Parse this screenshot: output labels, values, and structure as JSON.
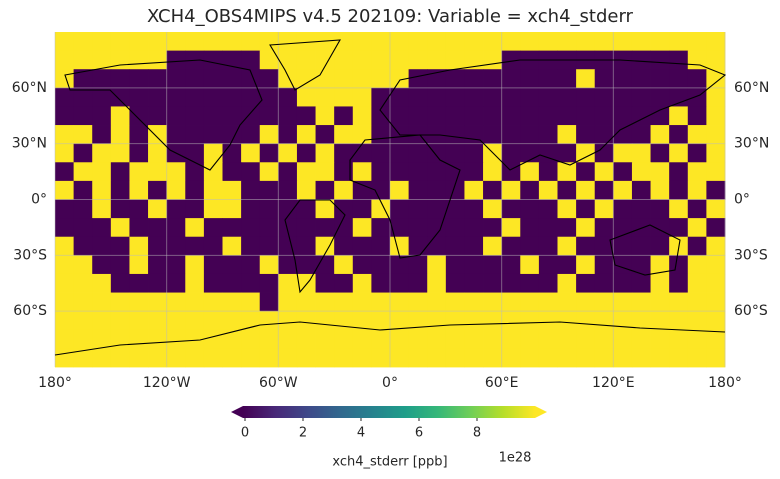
{
  "title": "XCH4_OBS4MIPS v4.5 202109: Variable = xch4_stderr",
  "map": {
    "lonlim": [
      -180,
      180
    ],
    "latlim": [
      -90,
      90
    ],
    "grid": true,
    "lonticks": [
      {
        "value": -180,
        "label": "180°"
      },
      {
        "value": -120,
        "label": "120°W"
      },
      {
        "value": -60,
        "label": "60°W"
      },
      {
        "value": 0,
        "label": "0°"
      },
      {
        "value": 60,
        "label": "60°E"
      },
      {
        "value": 120,
        "label": "120°E"
      },
      {
        "value": 180,
        "label": "180°"
      }
    ],
    "latticks": [
      {
        "value": 60,
        "label": "60°N"
      },
      {
        "value": 30,
        "label": "30°N"
      },
      {
        "value": 0,
        "label": "0°"
      },
      {
        "value": -30,
        "label": "30°S"
      },
      {
        "value": -60,
        "label": "60°S"
      }
    ],
    "cells": [
      [
        10,
        10,
        10,
        10,
        10,
        10,
        10,
        10,
        10,
        10,
        10,
        10,
        10,
        10,
        10,
        10,
        10,
        10,
        10,
        10,
        10,
        10,
        10,
        10,
        10,
        10,
        10,
        10,
        10,
        10,
        10,
        10,
        10,
        10,
        10,
        10
      ],
      [
        10,
        10,
        10,
        10,
        10,
        10,
        0,
        0,
        0,
        0,
        0,
        10,
        10,
        10,
        10,
        10,
        10,
        10,
        10,
        10,
        10,
        10,
        10,
        10,
        0,
        0,
        0,
        0,
        0,
        0,
        0,
        0,
        0,
        0,
        10,
        10
      ],
      [
        10,
        0,
        0,
        0,
        0,
        0,
        0,
        0,
        0,
        0,
        0,
        0,
        10,
        10,
        10,
        10,
        10,
        10,
        10,
        0,
        0,
        0,
        0,
        0,
        0,
        0,
        0,
        0,
        10,
        0,
        0,
        0,
        0,
        0,
        0,
        10
      ],
      [
        0,
        0,
        0,
        0,
        0,
        0,
        0,
        0,
        0,
        0,
        0,
        0,
        0,
        10,
        10,
        10,
        10,
        0,
        0,
        0,
        0,
        0,
        0,
        0,
        0,
        0,
        0,
        0,
        0,
        0,
        0,
        0,
        0,
        0,
        0,
        10
      ],
      [
        0,
        0,
        0,
        10,
        0,
        0,
        0,
        0,
        0,
        0,
        0,
        0,
        0,
        0,
        10,
        0,
        10,
        0,
        0,
        0,
        0,
        0,
        0,
        0,
        0,
        0,
        0,
        0,
        0,
        0,
        0,
        0,
        0,
        10,
        0,
        10
      ],
      [
        10,
        10,
        0,
        10,
        0,
        10,
        0,
        0,
        0,
        0,
        0,
        10,
        0,
        10,
        0,
        10,
        10,
        0,
        0,
        0,
        0,
        0,
        0,
        0,
        0,
        0,
        0,
        10,
        0,
        0,
        0,
        0,
        10,
        0,
        10,
        10
      ],
      [
        10,
        0,
        10,
        10,
        0,
        10,
        0,
        0,
        10,
        0,
        10,
        0,
        10,
        0,
        10,
        0,
        0,
        0,
        0,
        0,
        0,
        0,
        0,
        10,
        0,
        0,
        0,
        0,
        10,
        0,
        10,
        10,
        0,
        10,
        0,
        10
      ],
      [
        0,
        10,
        10,
        0,
        10,
        10,
        10,
        0,
        10,
        0,
        0,
        10,
        0,
        10,
        10,
        0,
        10,
        0,
        0,
        0,
        0,
        0,
        0,
        10,
        0,
        10,
        0,
        10,
        0,
        10,
        0,
        10,
        10,
        0,
        10,
        10
      ],
      [
        10,
        0,
        10,
        0,
        10,
        0,
        10,
        0,
        10,
        10,
        0,
        0,
        0,
        10,
        0,
        10,
        0,
        0,
        10,
        0,
        0,
        0,
        10,
        0,
        10,
        0,
        10,
        0,
        10,
        0,
        10,
        0,
        10,
        0,
        10,
        0
      ],
      [
        0,
        0,
        10,
        0,
        0,
        10,
        0,
        0,
        10,
        10,
        0,
        0,
        0,
        0,
        10,
        0,
        0,
        10,
        0,
        0,
        0,
        0,
        0,
        10,
        0,
        0,
        0,
        10,
        0,
        10,
        0,
        0,
        0,
        10,
        0,
        10
      ],
      [
        0,
        0,
        0,
        10,
        0,
        0,
        0,
        10,
        0,
        0,
        0,
        0,
        0,
        0,
        0,
        0,
        10,
        0,
        0,
        0,
        0,
        0,
        0,
        0,
        10,
        0,
        0,
        0,
        10,
        0,
        0,
        0,
        0,
        0,
        10,
        0
      ],
      [
        10,
        0,
        0,
        0,
        10,
        0,
        0,
        0,
        0,
        10,
        0,
        0,
        0,
        0,
        10,
        0,
        0,
        0,
        10,
        0,
        0,
        0,
        0,
        10,
        0,
        0,
        0,
        10,
        0,
        0,
        0,
        0,
        0,
        10,
        0,
        10
      ],
      [
        10,
        10,
        0,
        0,
        10,
        0,
        0,
        10,
        0,
        0,
        0,
        10,
        0,
        0,
        0,
        10,
        0,
        0,
        0,
        0,
        10,
        0,
        0,
        0,
        0,
        10,
        0,
        0,
        10,
        0,
        0,
        0,
        10,
        0,
        10,
        10
      ],
      [
        10,
        10,
        10,
        0,
        0,
        0,
        0,
        10,
        0,
        0,
        0,
        0,
        10,
        10,
        0,
        0,
        10,
        0,
        0,
        0,
        10,
        0,
        0,
        0,
        0,
        0,
        0,
        10,
        0,
        0,
        0,
        0,
        10,
        0,
        10,
        10
      ],
      [
        10,
        10,
        10,
        10,
        10,
        10,
        10,
        10,
        10,
        10,
        10,
        0,
        10,
        10,
        10,
        10,
        10,
        10,
        10,
        10,
        10,
        10,
        10,
        10,
        10,
        10,
        10,
        10,
        10,
        10,
        10,
        10,
        10,
        10,
        10,
        10
      ],
      [
        10,
        10,
        10,
        10,
        10,
        10,
        10,
        10,
        10,
        10,
        10,
        10,
        10,
        10,
        10,
        10,
        10,
        10,
        10,
        10,
        10,
        10,
        10,
        10,
        10,
        10,
        10,
        10,
        10,
        10,
        10,
        10,
        10,
        10,
        10,
        10
      ],
      [
        10,
        10,
        10,
        10,
        10,
        10,
        10,
        10,
        10,
        10,
        10,
        10,
        10,
        10,
        10,
        10,
        10,
        10,
        10,
        10,
        10,
        10,
        10,
        10,
        10,
        10,
        10,
        10,
        10,
        10,
        10,
        10,
        10,
        10,
        10,
        10
      ],
      [
        10,
        10,
        10,
        10,
        10,
        10,
        10,
        10,
        10,
        10,
        10,
        10,
        10,
        10,
        10,
        10,
        10,
        10,
        10,
        10,
        10,
        10,
        10,
        10,
        10,
        10,
        10,
        10,
        10,
        10,
        10,
        10,
        10,
        10,
        10,
        10
      ]
    ]
  },
  "colorbar": {
    "label": "xch4_stderr [ppb]",
    "offset": "1e28",
    "clim": [
      0,
      10
    ],
    "ticks": [
      0,
      2,
      4,
      6,
      8
    ],
    "colormap": [
      "#440154",
      "#482878",
      "#3e4989",
      "#31688e",
      "#26828e",
      "#1f9e89",
      "#35b779",
      "#6ece58",
      "#b5de2b",
      "#fde725"
    ]
  }
}
